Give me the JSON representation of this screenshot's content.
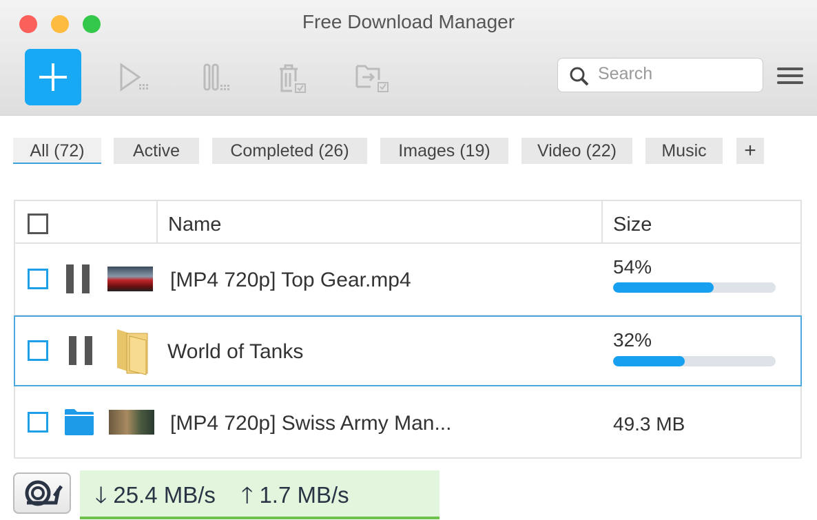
{
  "window": {
    "title": "Free Download Manager"
  },
  "toolbar": {
    "add_icon": "plus-icon",
    "search_placeholder": "Search",
    "icons": [
      "play-icon",
      "pause-icon",
      "trash-icon",
      "move-folder-icon",
      "menu-icon"
    ]
  },
  "tabs": [
    {
      "label": "All (72)",
      "active": true
    },
    {
      "label": "Active"
    },
    {
      "label": "Completed (26)"
    },
    {
      "label": "Images (19)"
    },
    {
      "label": "Video (22)"
    },
    {
      "label": "Music"
    },
    {
      "label": "+"
    }
  ],
  "table": {
    "columns": [
      "Name",
      "Size"
    ],
    "rows": [
      {
        "name": "[MP4 720p] Top Gear.mp4",
        "status": "paused",
        "size": "54%",
        "progress": 54
      },
      {
        "name": "World of Tanks",
        "status": "paused",
        "size": "32%",
        "progress": 32,
        "selected": true
      },
      {
        "name": "[MP4 720p] Swiss Army Man...",
        "status": "completed",
        "size": "49.3 MB"
      }
    ]
  },
  "status": {
    "download": "25.4 MB/s",
    "upload": "1.7 MB/s"
  },
  "colors": {
    "accent": "#17a9f4",
    "speed_bg": "#e2f5dd"
  }
}
